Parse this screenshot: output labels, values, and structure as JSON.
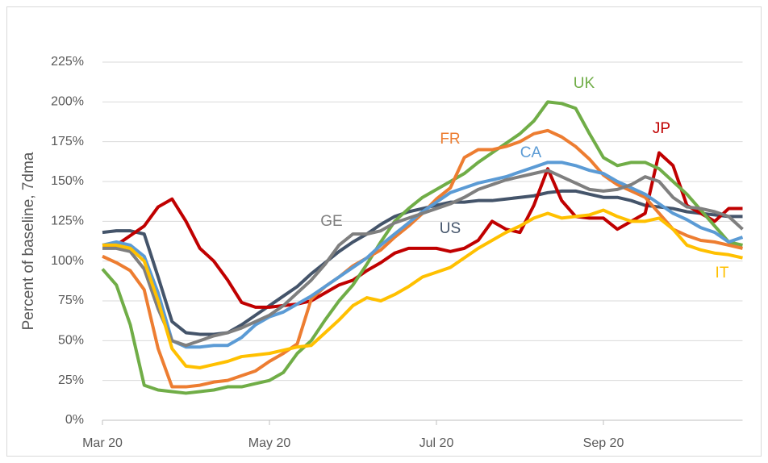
{
  "chart_data": {
    "type": "line",
    "y_label": "Percent of baseline, 7dma",
    "categories": [
      "Mar 20",
      null,
      null,
      null,
      null,
      null,
      null,
      null,
      null,
      null,
      null,
      null,
      "May 20",
      null,
      null,
      null,
      null,
      null,
      null,
      null,
      null,
      null,
      null,
      null,
      "Jul 20",
      null,
      null,
      null,
      null,
      null,
      null,
      null,
      null,
      null,
      null,
      null,
      "Sep 20",
      null,
      null,
      null,
      null,
      null,
      null,
      null,
      null,
      null,
      null
    ],
    "ylim": [
      0,
      225
    ],
    "yticks": [
      {
        "value": 0,
        "label": "0%"
      },
      {
        "value": 25,
        "label": "25%"
      },
      {
        "value": 50,
        "label": "50%"
      },
      {
        "value": 75,
        "label": "75%"
      },
      {
        "value": 100,
        "label": "100%"
      },
      {
        "value": 125,
        "label": "125%"
      },
      {
        "value": 150,
        "label": "150%"
      },
      {
        "value": 175,
        "label": "175%"
      },
      {
        "value": 200,
        "label": "200%"
      },
      {
        "value": 225,
        "label": "225%"
      }
    ],
    "grid": true,
    "series": [
      {
        "name": "US",
        "color": "#44546a",
        "values": [
          118,
          119,
          119,
          117,
          90,
          62,
          55,
          54,
          54,
          55,
          60,
          66,
          72,
          78,
          84,
          92,
          99,
          106,
          112,
          117,
          123,
          128,
          131,
          133,
          135,
          137,
          137,
          138,
          138,
          139,
          140,
          141,
          143,
          144,
          144,
          142,
          140,
          140,
          138,
          135,
          134,
          133,
          131,
          130,
          129,
          128,
          128
        ]
      },
      {
        "name": "JP",
        "color": "#c00000",
        "values": [
          110,
          110,
          116,
          122,
          134,
          139,
          125,
          108,
          100,
          88,
          74,
          71,
          71,
          72,
          73,
          75,
          80,
          85,
          88,
          94,
          99,
          105,
          108,
          108,
          108,
          106,
          108,
          113,
          125,
          120,
          118,
          135,
          158,
          138,
          128,
          127,
          127,
          120,
          125,
          130,
          168,
          160,
          135,
          130,
          125,
          133,
          133
        ]
      },
      {
        "name": "UK",
        "color": "#70ad47",
        "values": [
          95,
          85,
          60,
          22,
          19,
          18,
          17,
          18,
          19,
          21,
          21,
          23,
          25,
          30,
          42,
          50,
          63,
          75,
          85,
          98,
          112,
          125,
          133,
          140,
          145,
          150,
          155,
          162,
          168,
          174,
          180,
          188,
          200,
          199,
          196,
          180,
          165,
          160,
          162,
          162,
          158,
          150,
          142,
          132,
          122,
          112,
          110
        ]
      },
      {
        "name": "FR",
        "color": "#ed7d31",
        "values": [
          103,
          99,
          94,
          82,
          45,
          21,
          21,
          22,
          24,
          25,
          28,
          31,
          37,
          42,
          48,
          76,
          84,
          90,
          97,
          102,
          107,
          115,
          122,
          130,
          139,
          146,
          165,
          170,
          170,
          172,
          175,
          180,
          182,
          178,
          172,
          164,
          154,
          148,
          144,
          140,
          130,
          120,
          116,
          113,
          112,
          110,
          108
        ]
      },
      {
        "name": "CA",
        "color": "#5b9bd5",
        "values": [
          110,
          112,
          110,
          103,
          80,
          50,
          46,
          46,
          47,
          47,
          52,
          60,
          65,
          68,
          73,
          78,
          84,
          90,
          96,
          102,
          110,
          117,
          124,
          131,
          137,
          143,
          146,
          149,
          151,
          153,
          156,
          159,
          162,
          162,
          160,
          157,
          155,
          150,
          146,
          142,
          136,
          130,
          126,
          121,
          118,
          112,
          115
        ]
      },
      {
        "name": "GE",
        "color": "#7f7f7f",
        "values": [
          108,
          108,
          106,
          95,
          70,
          50,
          47,
          50,
          53,
          55,
          58,
          62,
          66,
          72,
          80,
          88,
          98,
          110,
          117,
          117,
          119,
          124,
          127,
          130,
          133,
          136,
          140,
          145,
          148,
          151,
          153,
          155,
          157,
          153,
          149,
          145,
          144,
          145,
          148,
          153,
          150,
          140,
          134,
          133,
          131,
          128,
          120
        ]
      },
      {
        "name": "IT",
        "color": "#ffc000",
        "values": [
          110,
          110,
          108,
          100,
          75,
          45,
          34,
          33,
          35,
          37,
          40,
          41,
          42,
          44,
          46,
          47,
          55,
          63,
          72,
          77,
          75,
          79,
          84,
          90,
          93,
          96,
          102,
          108,
          113,
          118,
          122,
          127,
          130,
          127,
          128,
          129,
          132,
          128,
          125,
          125,
          127,
          120,
          110,
          107,
          105,
          104,
          102
        ]
      }
    ]
  }
}
